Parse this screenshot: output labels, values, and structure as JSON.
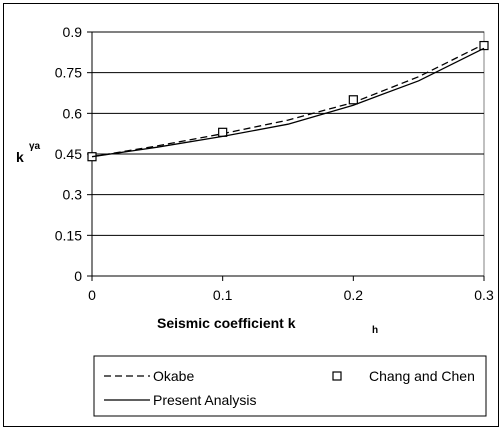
{
  "chart_data": {
    "type": "line",
    "xlabel": "Seismic coefficient k",
    "xlabel_sub": "h",
    "ylabel": "k",
    "ylabel_sup": "γa",
    "xlim": [
      0,
      0.3
    ],
    "ylim": [
      0,
      0.9
    ],
    "x_ticks": [
      "0",
      "0.1",
      "0.2",
      "0.3"
    ],
    "y_ticks": [
      "0",
      "0.15",
      "0.3",
      "0.45",
      "0.6",
      "0.75",
      "0.9"
    ],
    "grid": "horizontal",
    "legend_position": "bottom",
    "series": [
      {
        "name": "Okabe",
        "style": "dashed",
        "x": [
          0,
          0.05,
          0.1,
          0.15,
          0.2,
          0.25,
          0.3
        ],
        "y": [
          0.44,
          0.48,
          0.525,
          0.575,
          0.64,
          0.735,
          0.855
        ]
      },
      {
        "name": "Chang and Chen",
        "style": "markers",
        "x": [
          0,
          0.1,
          0.2,
          0.3
        ],
        "y": [
          0.44,
          0.53,
          0.65,
          0.85
        ]
      },
      {
        "name": "Present Analysis",
        "style": "solid",
        "x": [
          0,
          0.05,
          0.1,
          0.15,
          0.2,
          0.25,
          0.3
        ],
        "y": [
          0.44,
          0.475,
          0.515,
          0.56,
          0.63,
          0.72,
          0.84
        ]
      }
    ]
  }
}
